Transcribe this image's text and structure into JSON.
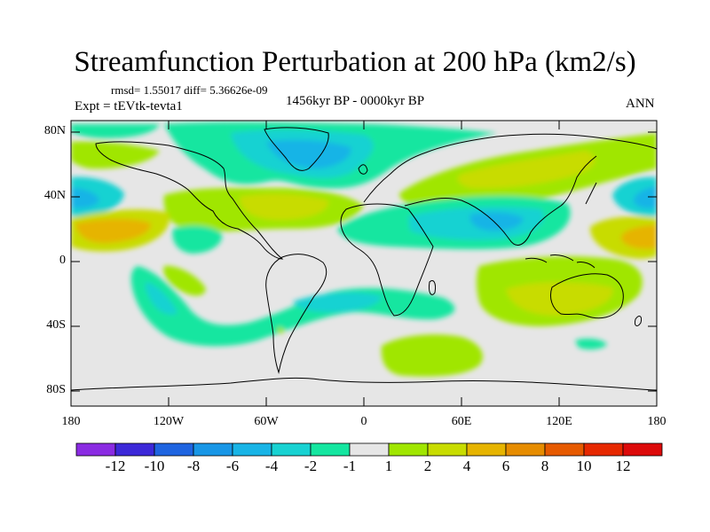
{
  "title": "Streamfunction Perturbation at 200 hPa (km2/s)",
  "stats_line": "rmsd= 1.55017 diff= 5.36626e-09",
  "period": "1456kyr BP - 0000kyr BP",
  "experiment": "Expt = tEVtk-tevta1",
  "season": "ANN",
  "y_axis_labels": [
    "80N",
    "40N",
    "0",
    "40S",
    "80S"
  ],
  "x_axis_labels": [
    "180",
    "120W",
    "60W",
    "0",
    "60E",
    "120E",
    "180"
  ],
  "colorbar": {
    "labels": [
      "-12",
      "-10",
      "-8",
      "-6",
      "-4",
      "-2",
      "-1",
      "1",
      "2",
      "4",
      "6",
      "8",
      "10",
      "12"
    ],
    "colors": [
      "#8a2be2",
      "#3c28d8",
      "#1e64e0",
      "#1896e6",
      "#18b4e6",
      "#18d2d2",
      "#14e6a0",
      "#e6e6e6",
      "#a0e600",
      "#c8dc00",
      "#e6b400",
      "#e68c00",
      "#e65a00",
      "#e62800",
      "#dc0a0a"
    ]
  },
  "map_colors": {
    "neutral": "#e6e6e6",
    "pos1": "#a0e600",
    "pos2": "#c8dc00",
    "pos3": "#e6b400",
    "neg1": "#14e6a0",
    "neg2": "#18d2d2",
    "neg3": "#18b4e6"
  }
}
